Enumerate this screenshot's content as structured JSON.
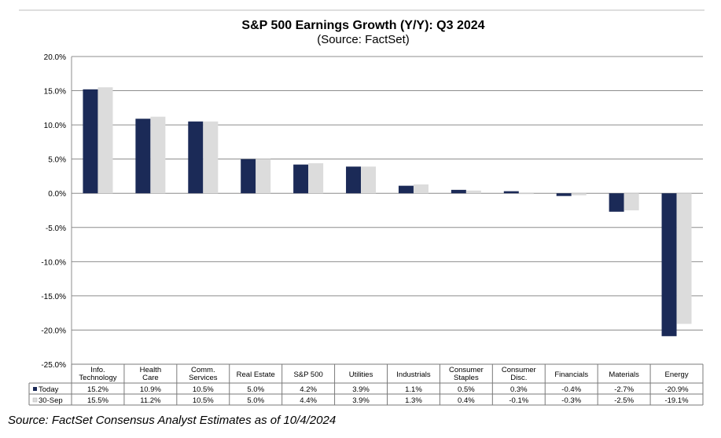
{
  "chart_data": {
    "type": "bar",
    "title": "S&P 500 Earnings Growth (Y/Y): Q3 2024",
    "subtitle": "(Source: FactSet)",
    "categories": [
      [
        "Info.",
        "Technology"
      ],
      [
        "Health",
        "Care"
      ],
      [
        "Comm.",
        "Services"
      ],
      [
        "Real Estate"
      ],
      [
        "S&P 500"
      ],
      [
        "Utilities"
      ],
      [
        "Industrials"
      ],
      [
        "Consumer",
        "Staples"
      ],
      [
        "Consumer",
        "Disc."
      ],
      [
        "Financials"
      ],
      [
        "Materials"
      ],
      [
        "Energy"
      ]
    ],
    "series": [
      {
        "name": "Today",
        "color": "#1b2a57",
        "values": [
          15.2,
          10.9,
          10.5,
          5.0,
          4.2,
          3.9,
          1.1,
          0.5,
          0.3,
          -0.4,
          -2.7,
          -20.9
        ],
        "labels": [
          "15.2%",
          "10.9%",
          "10.5%",
          "5.0%",
          "4.2%",
          "3.9%",
          "1.1%",
          "0.5%",
          "0.3%",
          "-0.4%",
          "-2.7%",
          "-20.9%"
        ]
      },
      {
        "name": "30-Sep",
        "color": "#dcdcdc",
        "values": [
          15.5,
          11.2,
          10.5,
          5.0,
          4.4,
          3.9,
          1.3,
          0.4,
          -0.1,
          -0.3,
          -2.5,
          -19.1
        ],
        "labels": [
          "15.5%",
          "11.2%",
          "10.5%",
          "5.0%",
          "4.4%",
          "3.9%",
          "1.3%",
          "0.4%",
          "-0.1%",
          "-0.3%",
          "-2.5%",
          "-19.1%"
        ]
      }
    ],
    "ylim": [
      -25,
      20
    ],
    "yticks": [
      20,
      15,
      10,
      5,
      0,
      -5,
      -10,
      -15,
      -20,
      -25
    ],
    "ytick_labels": [
      "20.0%",
      "15.0%",
      "10.0%",
      "5.0%",
      "0.0%",
      "-5.0%",
      "-10.0%",
      "-15.0%",
      "-20.0%",
      "-25.0%"
    ],
    "grid": true,
    "legend_placement": "data-table"
  },
  "footnote": "Source: FactSet Consensus Analyst Estimates as of 10/4/2024"
}
